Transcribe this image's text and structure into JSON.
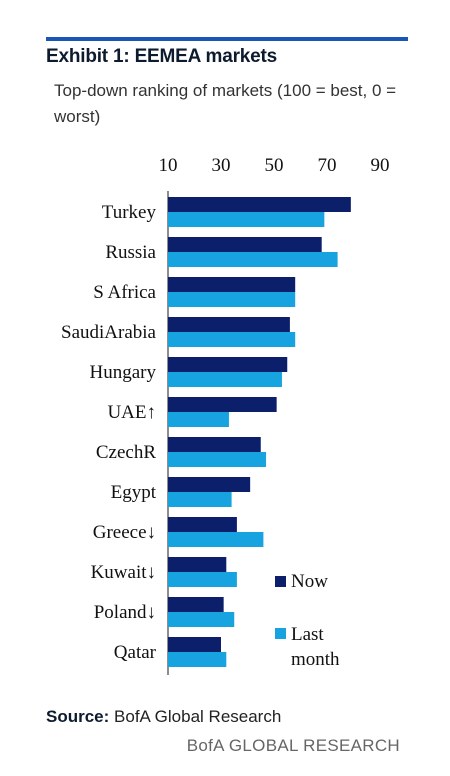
{
  "header": {
    "title": "Exhibit 1: EEMEA markets",
    "subtitle": "Top-down ranking of markets (100 = best, 0 = worst)"
  },
  "footer": {
    "source_label": "Source:",
    "source_text": "BofA Global Research",
    "brand": "BofA GLOBAL RESEARCH"
  },
  "colors": {
    "now": "#0c1f6b",
    "last_month": "#16a3e0",
    "accent_bar": "#1a55b8"
  },
  "chart_data": {
    "type": "bar",
    "orientation": "horizontal",
    "categories": [
      "Turkey",
      "Russia",
      "S Africa",
      "SaudiArabia",
      "Hungary",
      "UAE↑",
      "CzechR",
      "Egypt",
      "Greece↓",
      "Kuwait↓",
      "Poland↓",
      "Qatar"
    ],
    "series": [
      {
        "name": "Now",
        "values": [
          79,
          68,
          58,
          56,
          55,
          51,
          45,
          41,
          36,
          32,
          31,
          30
        ]
      },
      {
        "name": "Last month",
        "values": [
          69,
          74,
          58,
          58,
          53,
          33,
          47,
          34,
          46,
          36,
          35,
          32
        ]
      }
    ],
    "x_ticks": [
      "10",
      "30",
      "50",
      "70",
      "90"
    ],
    "xlim": [
      10,
      90
    ],
    "x_axis_position": "top",
    "grid": false,
    "legend_position": "bottom-right"
  }
}
